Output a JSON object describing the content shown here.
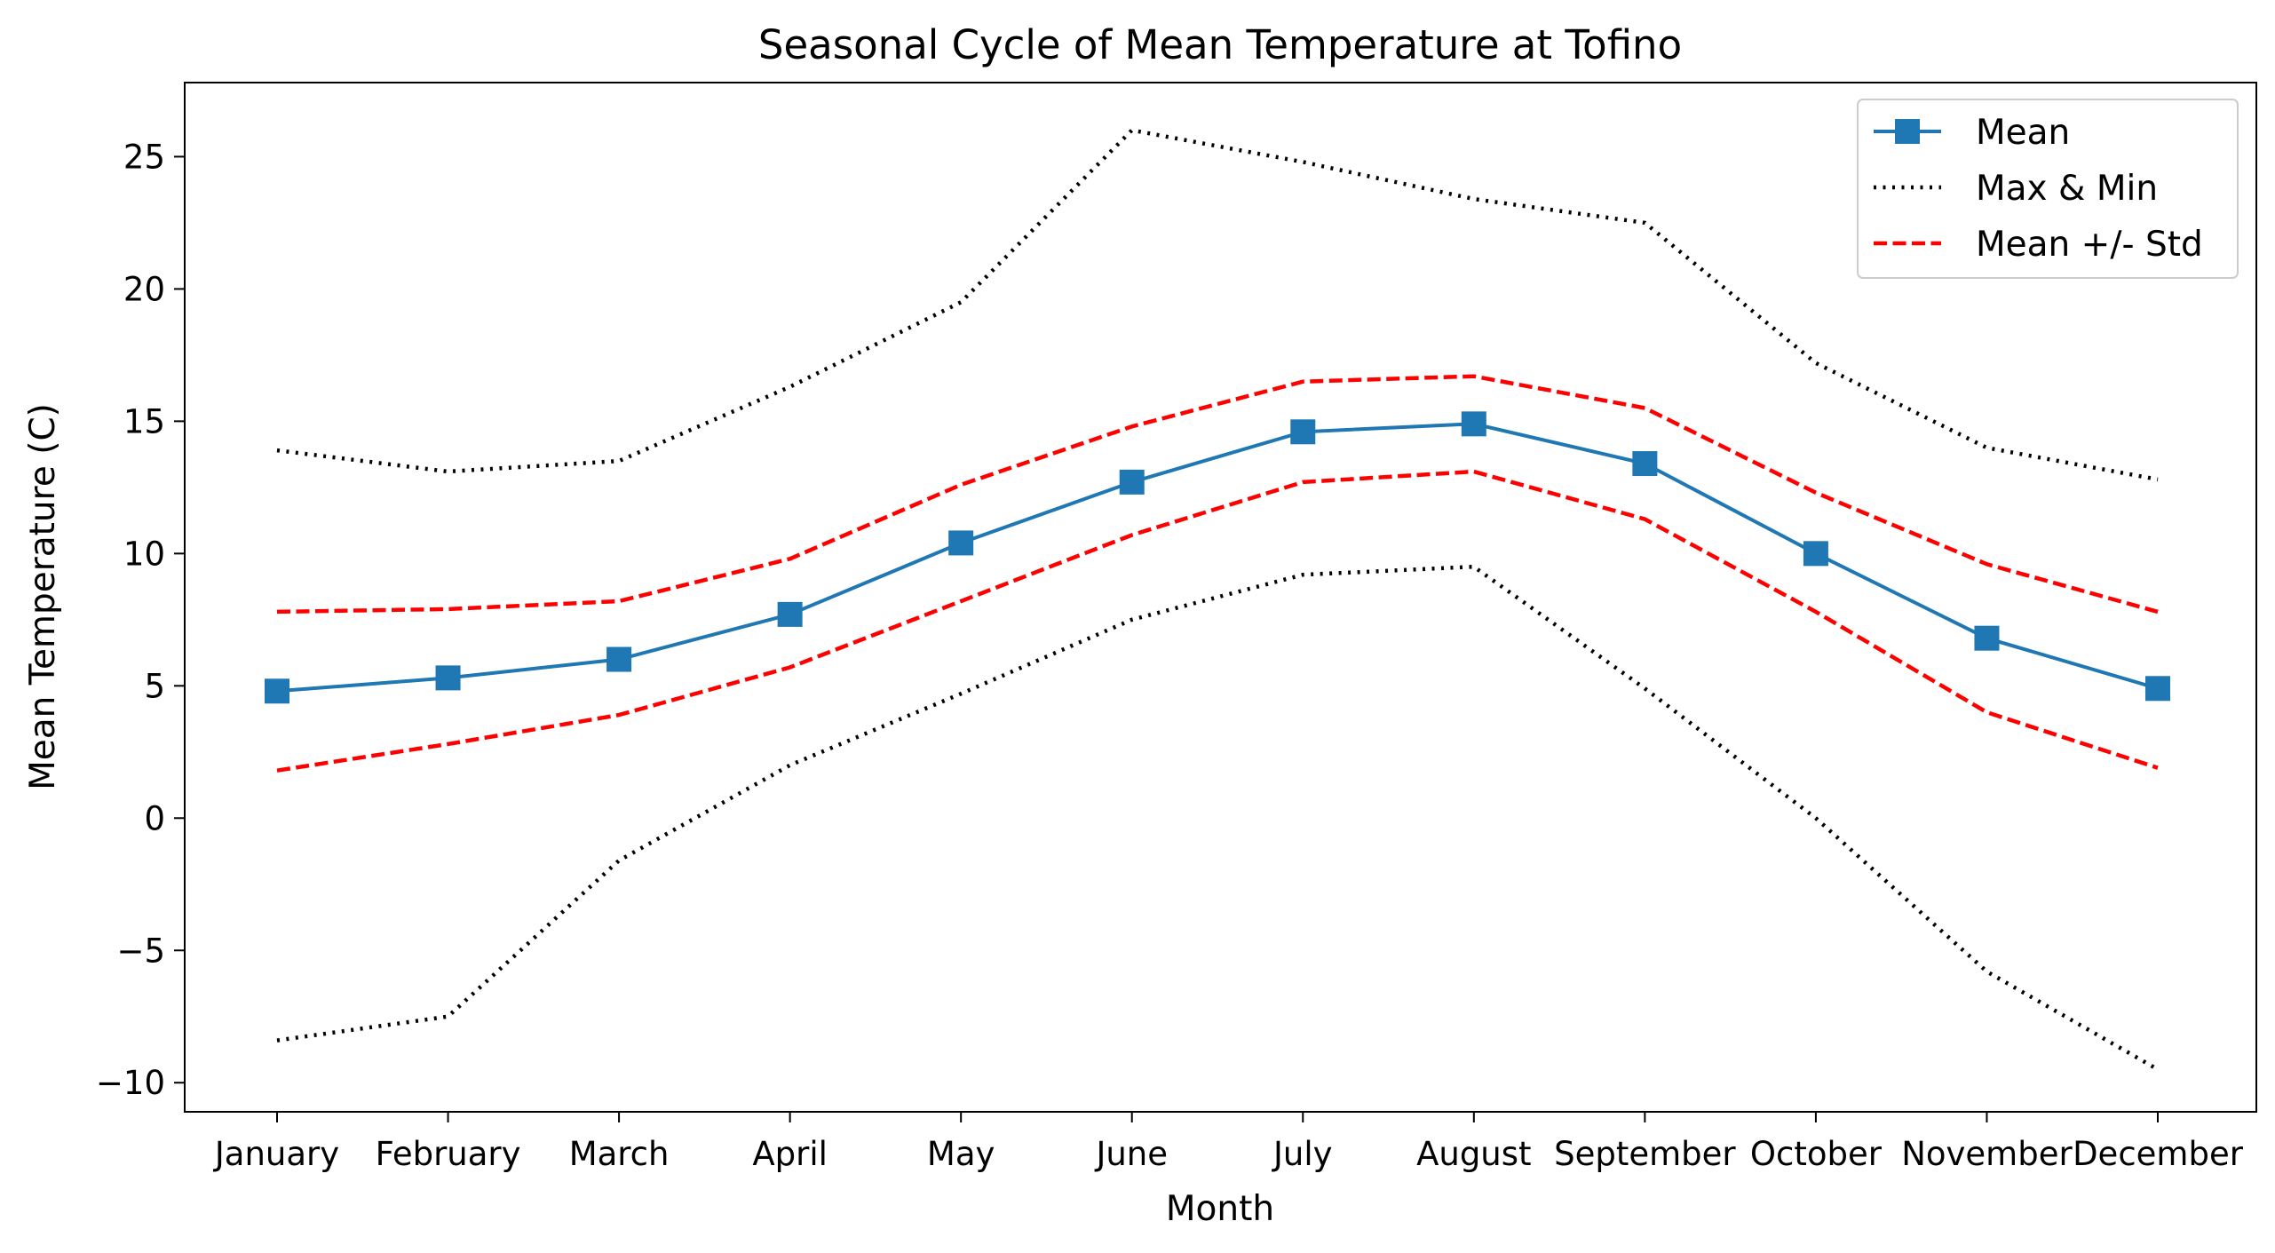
{
  "chart_data": {
    "type": "line",
    "title": "Seasonal Cycle of Mean Temperature at Tofino",
    "xlabel": "Month",
    "ylabel": "Mean Temperature (C)",
    "categories": [
      "January",
      "February",
      "March",
      "April",
      "May",
      "June",
      "July",
      "August",
      "September",
      "October",
      "November",
      "December"
    ],
    "ylim": [
      -11.1,
      27.8
    ],
    "yticks": [
      -10,
      -5,
      0,
      5,
      10,
      15,
      20,
      25
    ],
    "ytick_labels": [
      "−10",
      "−5",
      "0",
      "5",
      "10",
      "15",
      "20",
      "25"
    ],
    "grid": false,
    "legend_position": "top-right",
    "series": [
      {
        "name": "Mean",
        "values": [
          4.8,
          5.3,
          6.0,
          7.7,
          10.4,
          12.7,
          14.6,
          14.9,
          13.4,
          10.0,
          6.8,
          4.9
        ],
        "color": "#1f77b4",
        "style": "solid",
        "marker": "square"
      },
      {
        "name": "Max & Min",
        "values": [
          13.9,
          13.1,
          13.5,
          16.3,
          19.5,
          26.0,
          24.8,
          23.4,
          22.5,
          17.2,
          14.0,
          12.8
        ],
        "color": "#000000",
        "style": "dotted"
      },
      {
        "name": "",
        "values": [
          -8.4,
          -7.5,
          -1.6,
          2.0,
          4.7,
          7.5,
          9.2,
          9.5,
          4.9,
          0.0,
          -5.8,
          -9.5
        ],
        "color": "#000000",
        "style": "dotted"
      },
      {
        "name": "Mean +/- Std",
        "values": [
          7.8,
          7.9,
          8.2,
          9.8,
          12.6,
          14.8,
          16.5,
          16.7,
          15.5,
          12.3,
          9.6,
          7.8
        ],
        "color": "#ff0000",
        "style": "dashed"
      },
      {
        "name": "",
        "values": [
          1.8,
          2.8,
          3.9,
          5.7,
          8.2,
          10.7,
          12.7,
          13.1,
          11.3,
          7.8,
          4.0,
          1.9
        ],
        "color": "#ff0000",
        "style": "dashed"
      }
    ]
  }
}
